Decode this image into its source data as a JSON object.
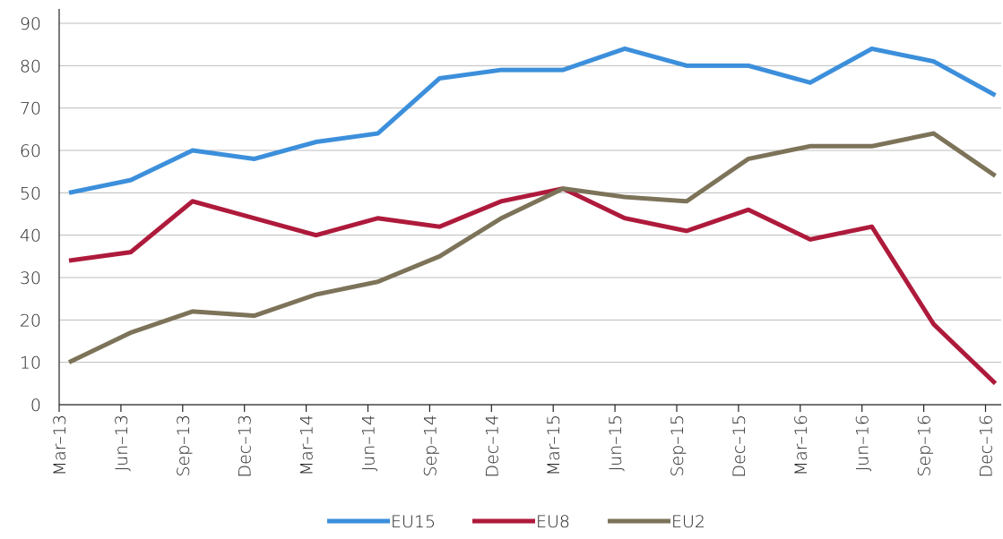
{
  "chart_data": {
    "type": "line",
    "categories": [
      "Mar–13",
      "Jun–13",
      "Sep–13",
      "Dec–13",
      "Mar–14",
      "Jun–14",
      "Sep–14",
      "Dec–14",
      "Mar–15",
      "Jun–15",
      "Sep–15",
      "Dec–15",
      "Mar–16",
      "Jun–16",
      "Sep–16",
      "Dec–16"
    ],
    "series": [
      {
        "name": "EU15",
        "color": "#3c8fdb",
        "values": [
          50,
          53,
          60,
          58,
          62,
          64,
          77,
          79,
          79,
          84,
          80,
          80,
          76,
          84,
          81,
          73
        ]
      },
      {
        "name": "EU8",
        "color": "#ae1a3b",
        "values": [
          34,
          36,
          48,
          44,
          40,
          44,
          42,
          48,
          51,
          44,
          41,
          46,
          39,
          42,
          19,
          5
        ]
      },
      {
        "name": "EU2",
        "color": "#7c7359",
        "values": [
          10,
          17,
          22,
          21,
          26,
          29,
          35,
          44,
          51,
          49,
          48,
          58,
          61,
          61,
          64,
          54
        ]
      }
    ],
    "ylim": [
      0,
      90
    ],
    "yticks": [
      0,
      10,
      20,
      30,
      40,
      50,
      60,
      70,
      80,
      90
    ],
    "grid": true,
    "legend": "bottom"
  }
}
